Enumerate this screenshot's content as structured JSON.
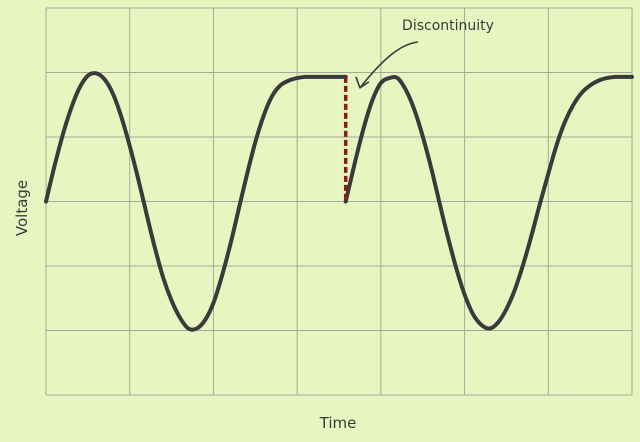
{
  "chart_data": {
    "type": "line",
    "title": "",
    "xlabel": "Time",
    "ylabel": "Voltage",
    "grid": true,
    "legend": "none",
    "xlim": [
      0,
      7
    ],
    "ylim": [
      -1.6,
      1.6
    ],
    "series": [
      {
        "x": [
          0.0,
          0.1,
          0.2,
          0.3,
          0.4,
          0.5,
          0.6,
          0.7,
          0.8,
          0.9,
          1.0,
          1.1,
          1.2,
          1.3,
          1.4,
          1.5,
          1.6,
          1.7,
          1.8,
          1.9,
          2.0,
          2.1,
          2.2,
          2.3,
          2.4,
          2.5,
          2.6,
          2.7,
          2.8,
          2.9,
          3.0,
          3.1,
          3.2,
          3.3,
          3.4,
          3.5,
          3.58
        ],
        "y": [
          0.0,
          0.29,
          0.55,
          0.77,
          0.94,
          1.04,
          1.06,
          1.01,
          0.89,
          0.7,
          0.46,
          0.19,
          -0.1,
          -0.38,
          -0.63,
          -0.82,
          -0.96,
          -1.05,
          -1.05,
          -0.98,
          -0.84,
          -0.62,
          -0.36,
          -0.07,
          0.22,
          0.49,
          0.71,
          0.87,
          0.96,
          1.0,
          1.02,
          1.03,
          1.03,
          1.03,
          1.03,
          1.03,
          1.03
        ]
      },
      {
        "x": [
          3.58,
          3.7,
          3.8,
          3.9,
          4.0,
          4.1,
          4.2,
          4.3,
          4.4,
          4.5,
          4.6,
          4.7,
          4.8,
          4.9,
          5.0,
          5.1,
          5.2,
          5.3,
          5.4,
          5.5,
          5.6,
          5.7,
          5.8,
          5.9,
          6.0,
          6.1,
          6.2,
          6.3,
          6.4,
          6.5,
          6.6,
          6.7,
          6.8,
          6.9,
          7.0
        ],
        "y": [
          0.0,
          0.35,
          0.62,
          0.84,
          0.98,
          1.02,
          1.02,
          0.92,
          0.76,
          0.54,
          0.28,
          -0.01,
          -0.29,
          -0.55,
          -0.77,
          -0.93,
          -1.02,
          -1.05,
          -1.0,
          -0.89,
          -0.73,
          -0.52,
          -0.28,
          -0.02,
          0.23,
          0.47,
          0.66,
          0.8,
          0.9,
          0.96,
          1.0,
          1.02,
          1.03,
          1.03,
          1.03
        ]
      }
    ],
    "discontinuity": {
      "x": 3.58,
      "y_from": 1.03,
      "y_to": 0.0
    },
    "annotations": [
      {
        "text": "Discontinuity",
        "points_to": {
          "x": 3.75,
          "y": 0.94
        }
      }
    ],
    "colors": {
      "background": "#e8f5c0",
      "grid": "#a4aa9a",
      "line": "#3a3a3a",
      "discontinuity": "#8b1a1a"
    }
  }
}
